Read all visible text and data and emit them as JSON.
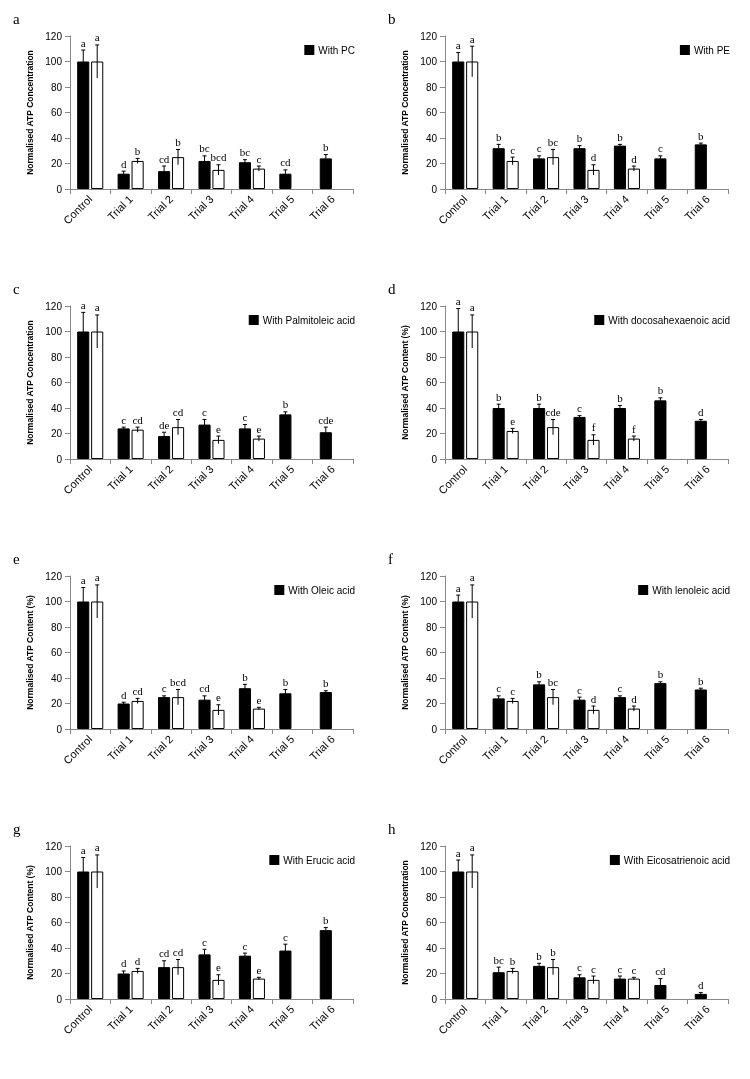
{
  "chart_data": [
    {
      "type": "bar",
      "title": "a",
      "ylabel": "Normalised ATP Concentration",
      "categories": [
        "Control",
        "Trial 1",
        "Trial 2",
        "Trial 3",
        "Trial 4",
        "Trial 5",
        "Trial 6"
      ],
      "ylim": [
        0,
        120
      ],
      "yticks": [
        0,
        20,
        40,
        60,
        80,
        100,
        120
      ],
      "legend": "top right",
      "series": [
        {
          "name": "With PC",
          "color": "#000000",
          "values": [
            100,
            12,
            14,
            22,
            21,
            12,
            24
          ],
          "errors": [
            9,
            2,
            4,
            4,
            2,
            3,
            3
          ],
          "value_labels": [
            "a",
            "d",
            "cd",
            "bc",
            "bc",
            "cd",
            "b"
          ]
        },
        {
          "color": "#ffffff",
          "values": [
            100,
            22,
            25,
            15,
            16,
            null,
            null
          ],
          "errors": [
            13,
            2,
            6,
            4,
            2,
            null,
            null
          ],
          "value_labels": [
            "a",
            "b",
            "b",
            "bcd",
            "c",
            null,
            null
          ]
        }
      ]
    },
    {
      "type": "bar",
      "title": "b",
      "ylabel": "Normalised ATP Concentration",
      "categories": [
        "Control",
        "Trial 1",
        "Trial 2",
        "Trial 3",
        "Trial 4",
        "Trial 5",
        "Trial 6"
      ],
      "ylim": [
        0,
        120
      ],
      "yticks": [
        0,
        20,
        40,
        60,
        80,
        100,
        120
      ],
      "legend": "top right",
      "series": [
        {
          "name": "With PE",
          "color": "#000000",
          "values": [
            100,
            32,
            24,
            32,
            34,
            24,
            35
          ],
          "errors": [
            7,
            3,
            2,
            2,
            1,
            2,
            1
          ],
          "value_labels": [
            "a",
            "b",
            "c",
            "b",
            "b",
            "c",
            "b"
          ]
        },
        {
          "color": "#ffffff",
          "values": [
            100,
            22,
            25,
            15,
            16,
            null,
            null
          ],
          "errors": [
            12,
            3,
            6,
            4,
            2,
            null,
            null
          ],
          "value_labels": [
            "a",
            "c",
            "bc",
            "d",
            "d",
            null,
            null
          ]
        }
      ]
    },
    {
      "type": "bar",
      "title": "c",
      "ylabel": "Normalised ATP Concentration",
      "categories": [
        "Control",
        "Trial 1",
        "Trial 2",
        "Trial 3",
        "Trial 4",
        "Trial 5",
        "Trial 6"
      ],
      "ylim": [
        0,
        120
      ],
      "yticks": [
        0,
        20,
        40,
        60,
        80,
        100,
        120
      ],
      "legend": "top right",
      "series": [
        {
          "name": "With Palmitoleic acid",
          "color": "#000000",
          "values": [
            100,
            24,
            18,
            27,
            24,
            35,
            21
          ],
          "errors": [
            15,
            1,
            3,
            4,
            3,
            2,
            4
          ],
          "value_labels": [
            "a",
            "c",
            "de",
            "c",
            "c",
            "b",
            "cde"
          ]
        },
        {
          "color": "#ffffff",
          "values": [
            100,
            23,
            25,
            15,
            16,
            null,
            null
          ],
          "errors": [
            13,
            2,
            6,
            3,
            2,
            null,
            null
          ],
          "value_labels": [
            "a",
            "cd",
            "cd",
            "e",
            "e",
            null,
            null
          ]
        }
      ]
    },
    {
      "type": "bar",
      "title": "d",
      "ylabel": "Normalised ATP Content (%)",
      "categories": [
        "Control",
        "Trial 1",
        "Trial 2",
        "Trial 3",
        "Trial 4",
        "Trial 5",
        "Trial 6"
      ],
      "ylim": [
        0,
        120
      ],
      "yticks": [
        0,
        20,
        40,
        60,
        80,
        100,
        120
      ],
      "legend": "top right",
      "series": [
        {
          "name": "With docosahexaenoic acid",
          "color": "#000000",
          "values": [
            100,
            40,
            40,
            33,
            40,
            46,
            30
          ],
          "errors": [
            18,
            3,
            3,
            1,
            2,
            2,
            1
          ],
          "value_labels": [
            "a",
            "b",
            "b",
            "c",
            "b",
            "b",
            "d"
          ]
        },
        {
          "color": "#ffffff",
          "values": [
            100,
            22,
            25,
            15,
            16,
            null,
            null
          ],
          "errors": [
            13,
            2,
            6,
            4,
            2,
            null,
            null
          ],
          "value_labels": [
            "a",
            "e",
            "cde",
            "f",
            "f",
            null,
            null
          ]
        }
      ]
    },
    {
      "type": "bar",
      "title": "e",
      "ylabel": "Normalised ATP Content (%)",
      "categories": [
        "Control",
        "Trial 1",
        "Trial 2",
        "Trial 3",
        "Trial 4",
        "Trial 5",
        "Trial 6"
      ],
      "ylim": [
        0,
        120
      ],
      "yticks": [
        0,
        20,
        40,
        60,
        80,
        100,
        120
      ],
      "legend": "top right",
      "series": [
        {
          "name": "With Oleic acid",
          "color": "#000000",
          "values": [
            100,
            20,
            25,
            23,
            32,
            28,
            29
          ],
          "errors": [
            11,
            1,
            1,
            3,
            3,
            3,
            1
          ],
          "value_labels": [
            "a",
            "d",
            "c",
            "cd",
            "b",
            "b",
            "b"
          ]
        },
        {
          "color": "#ffffff",
          "values": [
            100,
            22,
            25,
            15,
            16,
            null,
            null
          ],
          "errors": [
            13,
            2,
            6,
            4,
            1,
            null,
            null
          ],
          "value_labels": [
            "a",
            "cd",
            "bcd",
            "e",
            "e",
            null,
            null
          ]
        }
      ]
    },
    {
      "type": "bar",
      "title": "f",
      "ylabel": "Normalised ATP Content (%)",
      "categories": [
        "Control",
        "Trial 1",
        "Trial 2",
        "Trial 3",
        "Trial 4",
        "Trial 5",
        "Trial 6"
      ],
      "ylim": [
        0,
        120
      ],
      "yticks": [
        0,
        20,
        40,
        60,
        80,
        100,
        120
      ],
      "legend": "top right",
      "series": [
        {
          "name": "With lenoleic acid",
          "color": "#000000",
          "values": [
            100,
            24,
            35,
            23,
            25,
            36,
            31
          ],
          "errors": [
            5,
            2,
            2,
            2,
            1,
            1,
            1
          ],
          "value_labels": [
            "a",
            "c",
            "b",
            "c",
            "c",
            "b",
            "b"
          ]
        },
        {
          "color": "#ffffff",
          "values": [
            100,
            22,
            25,
            15,
            16,
            null,
            null
          ],
          "errors": [
            13,
            2,
            6,
            3,
            2,
            null,
            null
          ],
          "value_labels": [
            "a",
            "c",
            "bc",
            "d",
            "d",
            null,
            null
          ]
        }
      ]
    },
    {
      "type": "bar",
      "title": "g",
      "ylabel": "Normalised ATP Content (%)",
      "categories": [
        "Control",
        "Trial 1",
        "Trial 2",
        "Trial 3",
        "Trial 4",
        "Trial 5",
        "Trial 6"
      ],
      "ylim": [
        0,
        120
      ],
      "yticks": [
        0,
        20,
        40,
        60,
        80,
        100,
        120
      ],
      "legend": "top right",
      "series": [
        {
          "name": "With Erucic acid",
          "color": "#000000",
          "values": [
            100,
            20,
            25,
            35,
            34,
            38,
            54
          ],
          "errors": [
            11,
            2,
            5,
            4,
            2,
            5,
            2
          ],
          "value_labels": [
            "a",
            "d",
            "cd",
            "c",
            "c",
            "c",
            "b"
          ]
        },
        {
          "color": "#ffffff",
          "values": [
            100,
            22,
            25,
            15,
            16,
            null,
            null
          ],
          "errors": [
            13,
            2,
            6,
            4,
            1,
            null,
            null
          ],
          "value_labels": [
            "a",
            "d",
            "cd",
            "e",
            "e",
            null,
            null
          ]
        }
      ]
    },
    {
      "type": "bar",
      "title": "h",
      "ylabel": "Normalised ATP Concentration",
      "categories": [
        "Control",
        "Trial 1",
        "Trial 2",
        "Trial 3",
        "Trial 4",
        "Trial 5",
        "Trial 6"
      ],
      "ylim": [
        0,
        120
      ],
      "yticks": [
        0,
        20,
        40,
        60,
        80,
        100,
        120
      ],
      "legend": "top right",
      "series": [
        {
          "name": "With Eicosatrienoic acid",
          "color": "#000000",
          "values": [
            100,
            21,
            26,
            17,
            16,
            11,
            4
          ],
          "errors": [
            9,
            4,
            2,
            2,
            2,
            5,
            1
          ],
          "value_labels": [
            "a",
            "bc",
            "b",
            "c",
            "c",
            "cd",
            "d"
          ]
        },
        {
          "color": "#ffffff",
          "values": [
            100,
            22,
            25,
            15,
            16,
            null,
            null
          ],
          "errors": [
            13,
            2,
            6,
            3,
            1,
            null,
            null
          ],
          "value_labels": [
            "a",
            "b",
            "b",
            "c",
            "c",
            null,
            null
          ]
        }
      ]
    }
  ]
}
